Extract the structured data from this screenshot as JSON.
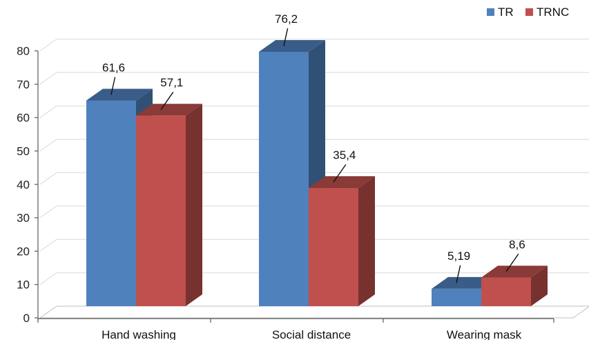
{
  "chart_data": {
    "type": "bar",
    "title": "",
    "xlabel": "",
    "ylabel": "",
    "categories": [
      "Hand washing",
      "Social distance",
      "Wearing mask"
    ],
    "series": [
      {
        "name": "TR",
        "values": [
          61.6,
          76.2,
          5.19
        ],
        "labels": [
          "61,6",
          "76,2",
          "5,19"
        ],
        "color": "#4F81BD"
      },
      {
        "name": "TRNC",
        "values": [
          57.1,
          35.4,
          8.6
        ],
        "labels": [
          "57,1",
          "35,4",
          "8,6"
        ],
        "color": "#C0504D"
      }
    ],
    "ylim": [
      0,
      80
    ],
    "yticks": [
      "0",
      "10",
      "20",
      "30",
      "40",
      "50",
      "60",
      "70",
      "80"
    ],
    "grid": true,
    "legend_position": "top-right",
    "style": "3d-column"
  }
}
